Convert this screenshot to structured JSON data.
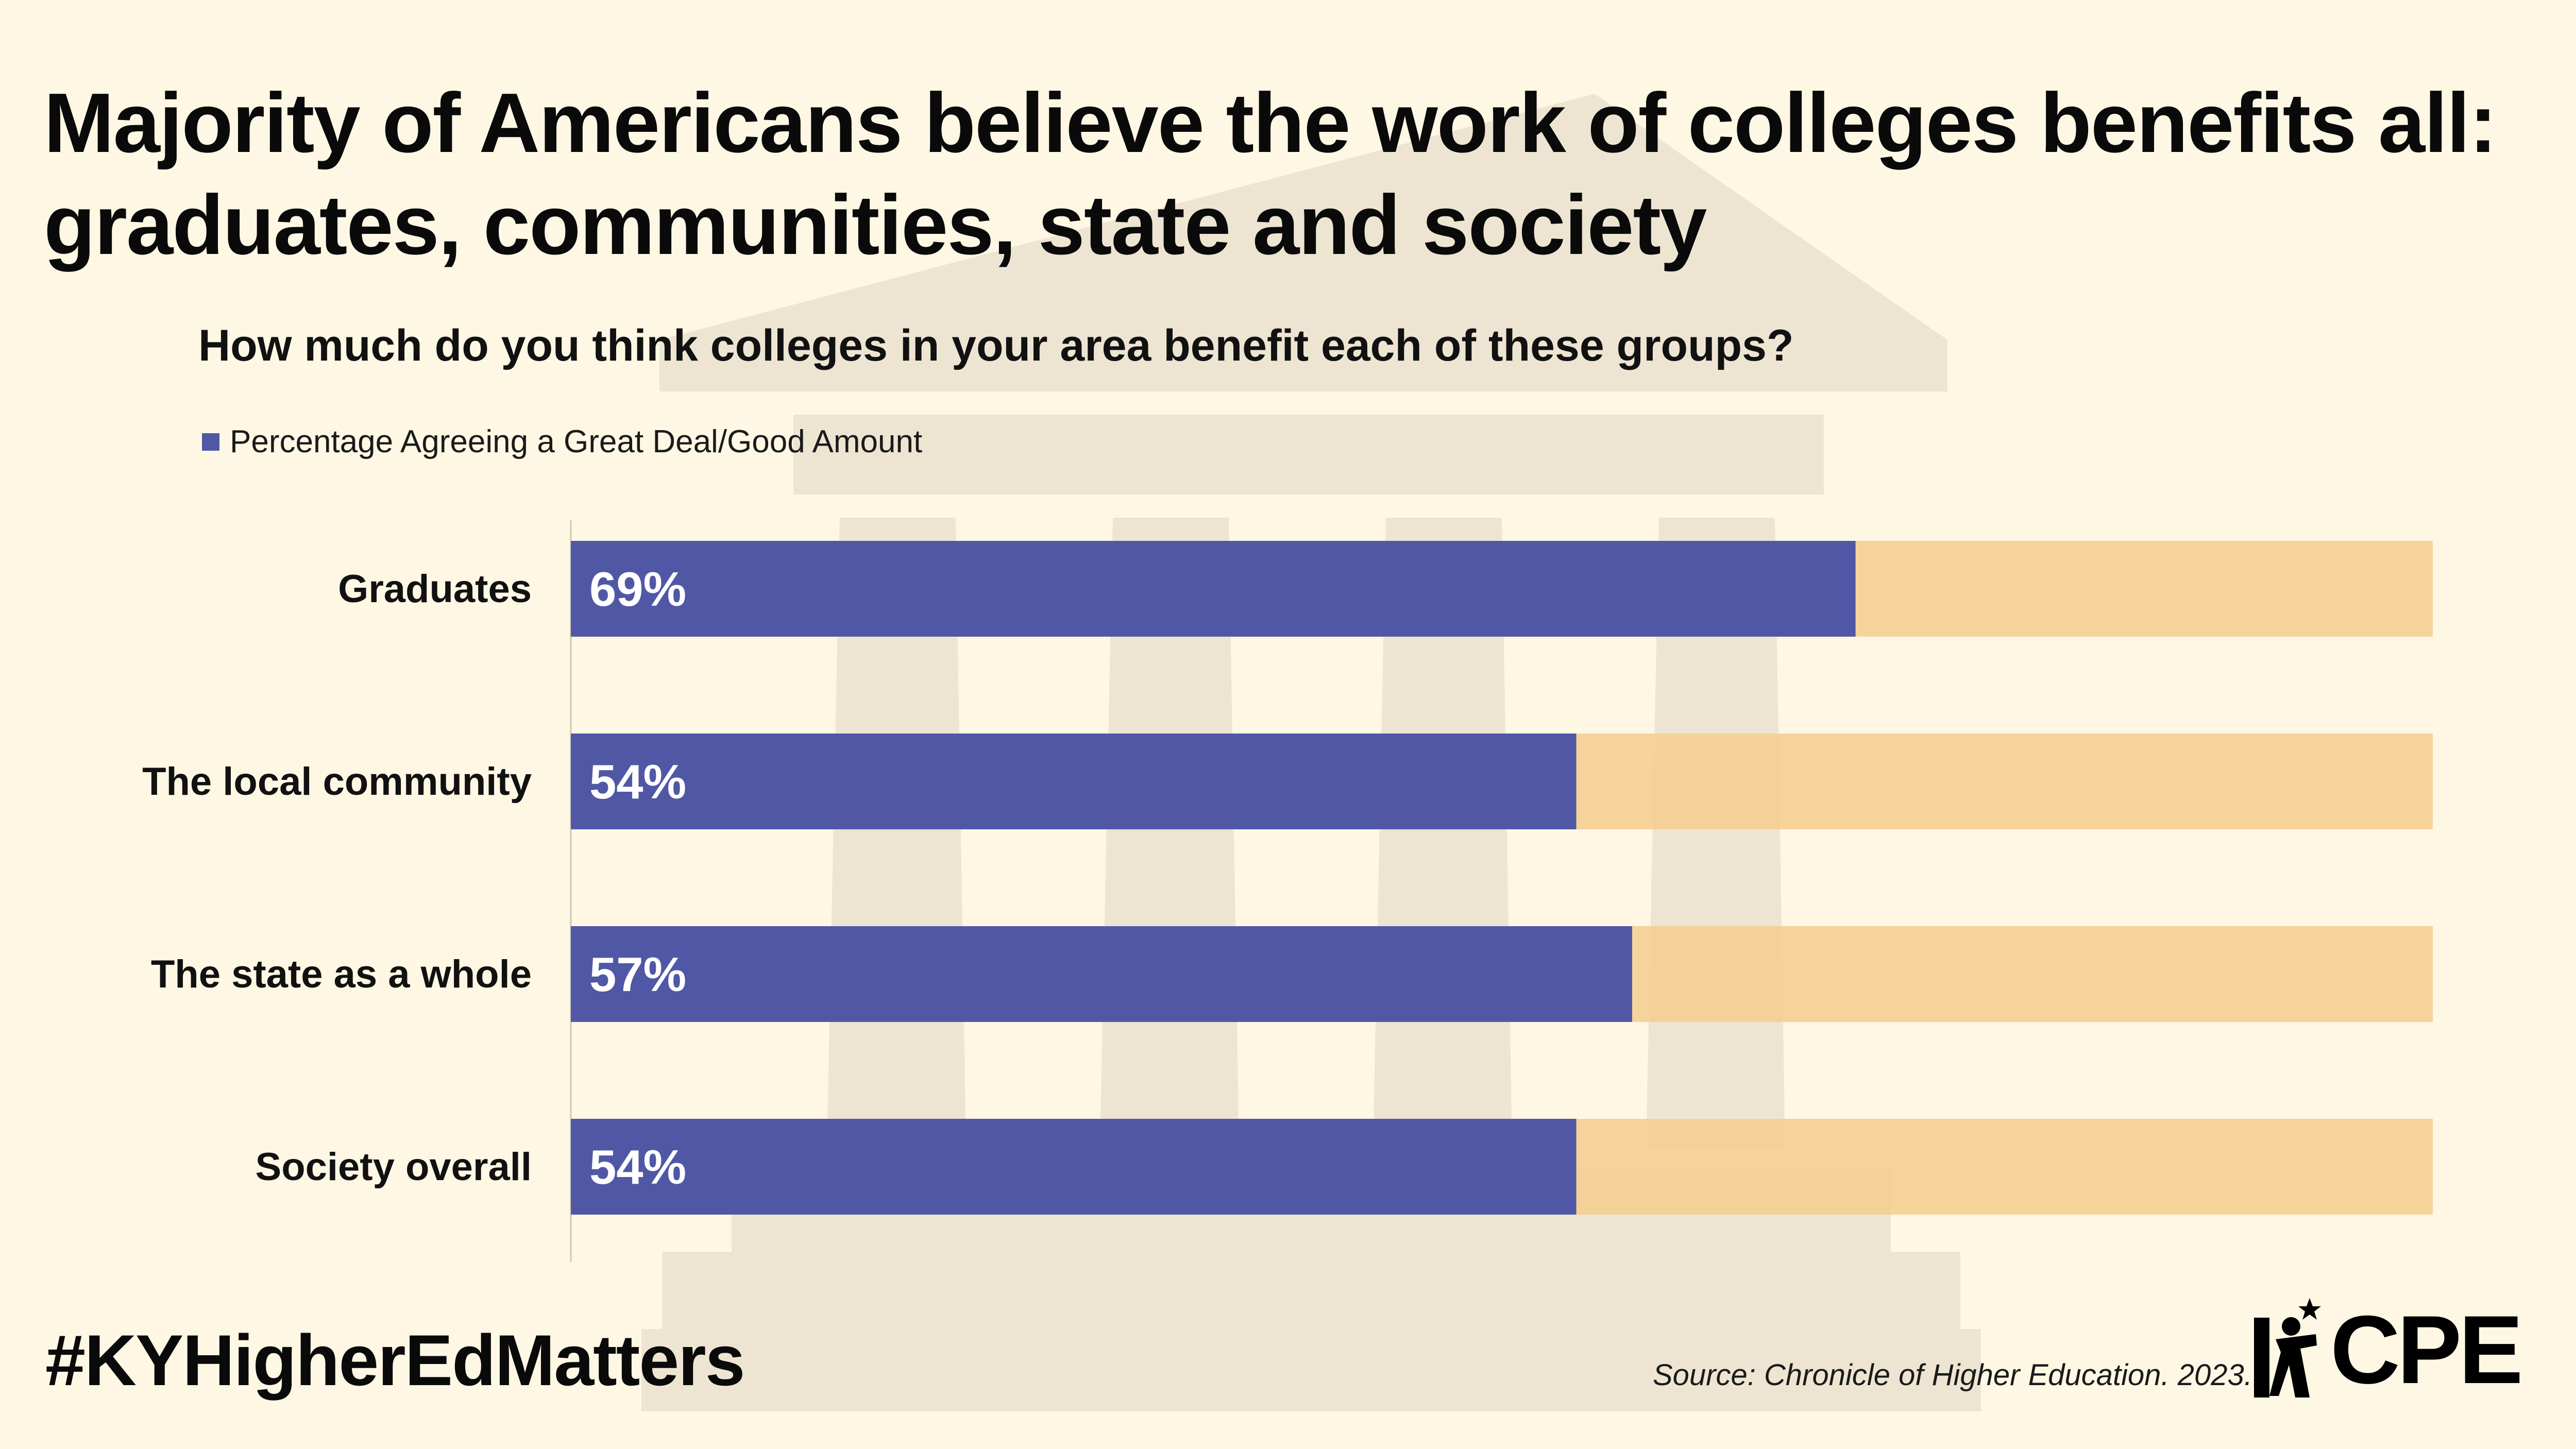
{
  "title": "Majority of Americans believe the work of colleges benefits all: graduates, communities, state and society",
  "question": "How much do you think colleges in your area benefit each of these groups?",
  "hashtag": "#KYHigherEdMatters",
  "source": "Source: Chronicle of Higher Education. 2023.",
  "logo_text": "CPE",
  "colors": {
    "background": "#FDF7E4",
    "bar_primary": "#5058A6",
    "bar_remainder": "#F5CE8F",
    "watermark": "#EDE5D2"
  },
  "chart_data": {
    "type": "bar",
    "orientation": "horizontal",
    "stacked": true,
    "categories": [
      "Graduates",
      "The local community",
      "The state as a whole",
      "Society overall"
    ],
    "series": [
      {
        "name": "Percentage Agreeing a Great Deal/Good Amount",
        "values": [
          69,
          54,
          57,
          54
        ],
        "labels": [
          "69%",
          "54%",
          "57%",
          "54%"
        ]
      }
    ],
    "xlim": [
      0,
      100
    ],
    "legend_position": "top-left",
    "grid": false
  }
}
